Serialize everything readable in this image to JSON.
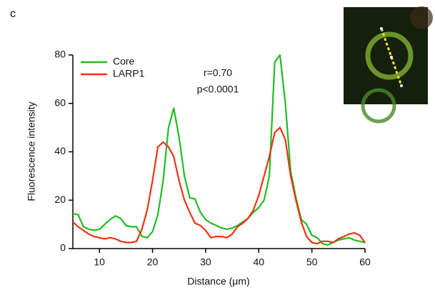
{
  "panel_label": "c",
  "chart_data": {
    "type": "line",
    "xlabel": "Distance (μm)",
    "ylabel": "Fluorescence intensity",
    "annotations": [
      "r=0.70",
      "p<0.0001"
    ],
    "x": [
      5,
      6,
      7,
      8,
      9,
      10,
      11,
      12,
      13,
      14,
      15,
      16,
      17,
      18,
      19,
      20,
      21,
      22,
      23,
      24,
      25,
      26,
      27,
      28,
      29,
      30,
      31,
      32,
      33,
      34,
      35,
      36,
      37,
      38,
      39,
      40,
      41,
      42,
      43,
      44,
      45,
      46,
      47,
      48,
      49,
      50,
      51,
      52,
      53,
      54,
      55,
      56,
      57,
      58,
      59,
      60
    ],
    "series": [
      {
        "name": "Core",
        "color": "#22bb22",
        "values": [
          14.5,
          14,
          9,
          8,
          7.5,
          8,
          10,
          12,
          13.5,
          12.5,
          9.5,
          9,
          9,
          5,
          4.5,
          7,
          14,
          28,
          50,
          58,
          46,
          30,
          21,
          20.5,
          15,
          12,
          10.5,
          9.5,
          8.5,
          8,
          8.5,
          9.5,
          11,
          12.5,
          15,
          17,
          20,
          30,
          77,
          80,
          60,
          32,
          21,
          12,
          10,
          5.5,
          4.5,
          2,
          1.5,
          2.5,
          3.5,
          4,
          4.5,
          3.5,
          3,
          2.5
        ]
      },
      {
        "name": "LARP1",
        "color": "#ee3311",
        "values": [
          11,
          9,
          7.5,
          6,
          5,
          4.5,
          4,
          4.5,
          4,
          3,
          2.5,
          2.5,
          3,
          8,
          16,
          28,
          42,
          44,
          42,
          38,
          28,
          20,
          15,
          10.5,
          9.5,
          7.5,
          4.5,
          5,
          5,
          4.5,
          6,
          9,
          10.5,
          12.5,
          16,
          22,
          30,
          38,
          48,
          50,
          45,
          30,
          20,
          11,
          5,
          2.5,
          2,
          3,
          3,
          2.5,
          4,
          5,
          6,
          6.5,
          5.5,
          2.5
        ]
      }
    ],
    "xlim": [
      5,
      60
    ],
    "xticks": [
      10,
      20,
      30,
      40,
      50,
      60
    ],
    "ylim": [
      0,
      80
    ],
    "yticks": [
      0,
      20,
      40,
      60,
      80
    ],
    "legend": "upper left"
  }
}
